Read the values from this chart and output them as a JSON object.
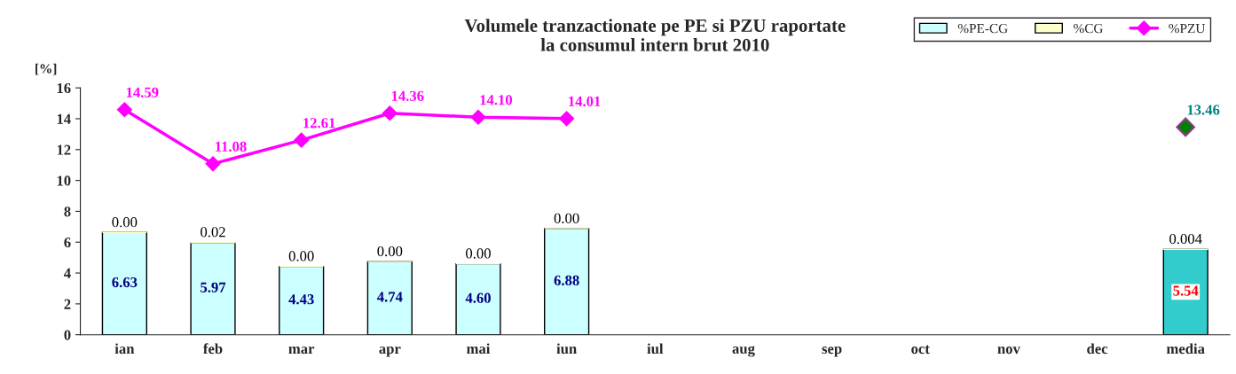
{
  "chart_data": {
    "type": "bar",
    "title": "Volumele tranzactionate pe PE si PZU raportate\nla consumul intern brut 2010",
    "ylabel": "[%]",
    "categories": [
      "ian",
      "feb",
      "mar",
      "apr",
      "mai",
      "iun",
      "iul",
      "aug",
      "sep",
      "oct",
      "nov",
      "dec",
      "media"
    ],
    "stacked": true,
    "ylim": [
      0,
      16
    ],
    "yticks": [
      0,
      2,
      4,
      6,
      8,
      10,
      12,
      14,
      16
    ],
    "grid": false,
    "legend": "top right",
    "series": [
      {
        "name": "%PE-CG",
        "color": "#ccffff",
        "colors": [
          "#ccffff",
          "#ccffff",
          "#ccffff",
          "#ccffff",
          "#ccffff",
          "#ccffff",
          "#ccffff",
          "#ccffff",
          "#ccffff",
          "#ccffff",
          "#ccffff",
          "#ccffff",
          "#33cccc"
        ],
        "values": [
          6.63,
          5.97,
          4.43,
          4.74,
          4.6,
          6.88,
          null,
          null,
          null,
          null,
          null,
          null,
          5.54
        ],
        "value_labels": [
          "6.63",
          "5.97",
          "4.43",
          "4.74",
          "4.60",
          "6.88",
          null,
          null,
          null,
          null,
          null,
          null,
          "5.54"
        ]
      },
      {
        "name": "%CG",
        "color": "#ffffcc",
        "values": [
          0.0,
          0.02,
          0.0,
          0.0,
          0.0,
          0.0,
          null,
          null,
          null,
          null,
          null,
          null,
          0.004
        ],
        "value_labels": [
          "0.00",
          "0.02",
          "0.00",
          "0.00",
          "0.00",
          "0.00",
          null,
          null,
          null,
          null,
          null,
          null,
          "0.004"
        ]
      },
      {
        "name": "%PZU",
        "type": "line",
        "color": "#ff00ff",
        "colors": [
          "#ff00ff",
          "#ff00ff",
          "#ff00ff",
          "#ff00ff",
          "#ff00ff",
          "#ff00ff",
          "#ff00ff",
          "#ff00ff",
          "#ff00ff",
          "#ff00ff",
          "#ff00ff",
          "#ff00ff",
          "#008000"
        ],
        "marker": "diamond",
        "values": [
          14.59,
          11.08,
          12.61,
          14.36,
          14.1,
          14.01,
          null,
          null,
          null,
          null,
          null,
          null,
          13.46
        ],
        "value_labels": [
          "14.59",
          "11.08",
          "12.61",
          "14.36",
          "14.10",
          "14.01",
          null,
          null,
          null,
          null,
          null,
          null,
          "13.46"
        ]
      }
    ]
  }
}
